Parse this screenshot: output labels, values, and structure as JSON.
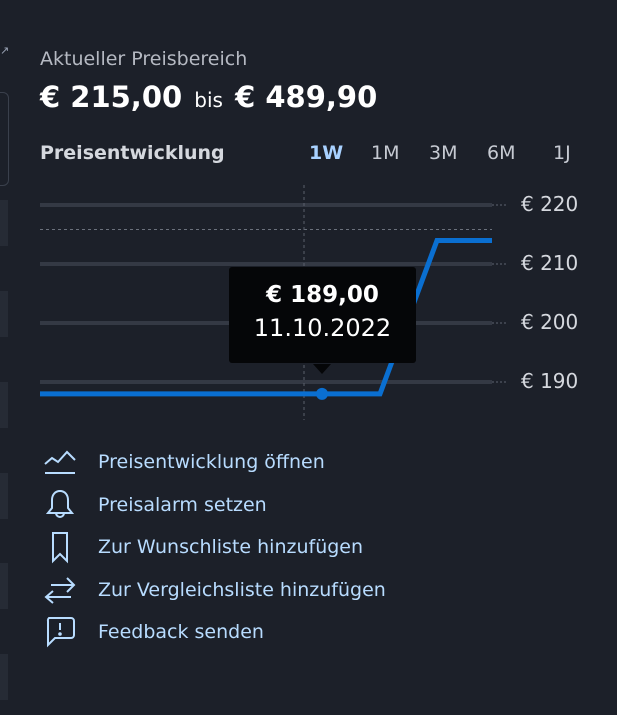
{
  "price_range": {
    "label": "Aktueller Preisbereich",
    "min": "€ 215,00",
    "separator": "bis",
    "max": "€ 489,90"
  },
  "history": {
    "title": "Preisentwicklung",
    "periods": [
      "1W",
      "1M",
      "3M",
      "6M",
      "1J"
    ],
    "active_period": "1W",
    "tooltip": {
      "price": "€ 189,00",
      "date": "11.10.2022"
    }
  },
  "chart_data": {
    "type": "line",
    "y_ticks": [
      "€ 220",
      "€ 210",
      "€ 200",
      "€ 190"
    ],
    "y_tick_values": [
      220,
      210,
      200,
      190
    ],
    "ylim": [
      188,
      221
    ],
    "grid": true,
    "series": [
      {
        "values": [
          189,
          189,
          189,
          189,
          189,
          189,
          215,
          215
        ],
        "color": "#0a6fd1"
      }
    ],
    "max_reference": 215,
    "highlight": {
      "value": 189,
      "date": "11.10.2022"
    }
  },
  "actions": [
    {
      "label": "Preisentwicklung öffnen",
      "icon": "chart-line-icon"
    },
    {
      "label": "Preisalarm setzen",
      "icon": "bell-icon"
    },
    {
      "label": "Zur Wunschliste hinzufügen",
      "icon": "bookmark-icon"
    },
    {
      "label": "Zur Vergleichsliste hinzufügen",
      "icon": "compare-arrows-icon"
    },
    {
      "label": "Feedback senden",
      "icon": "feedback-icon"
    }
  ]
}
